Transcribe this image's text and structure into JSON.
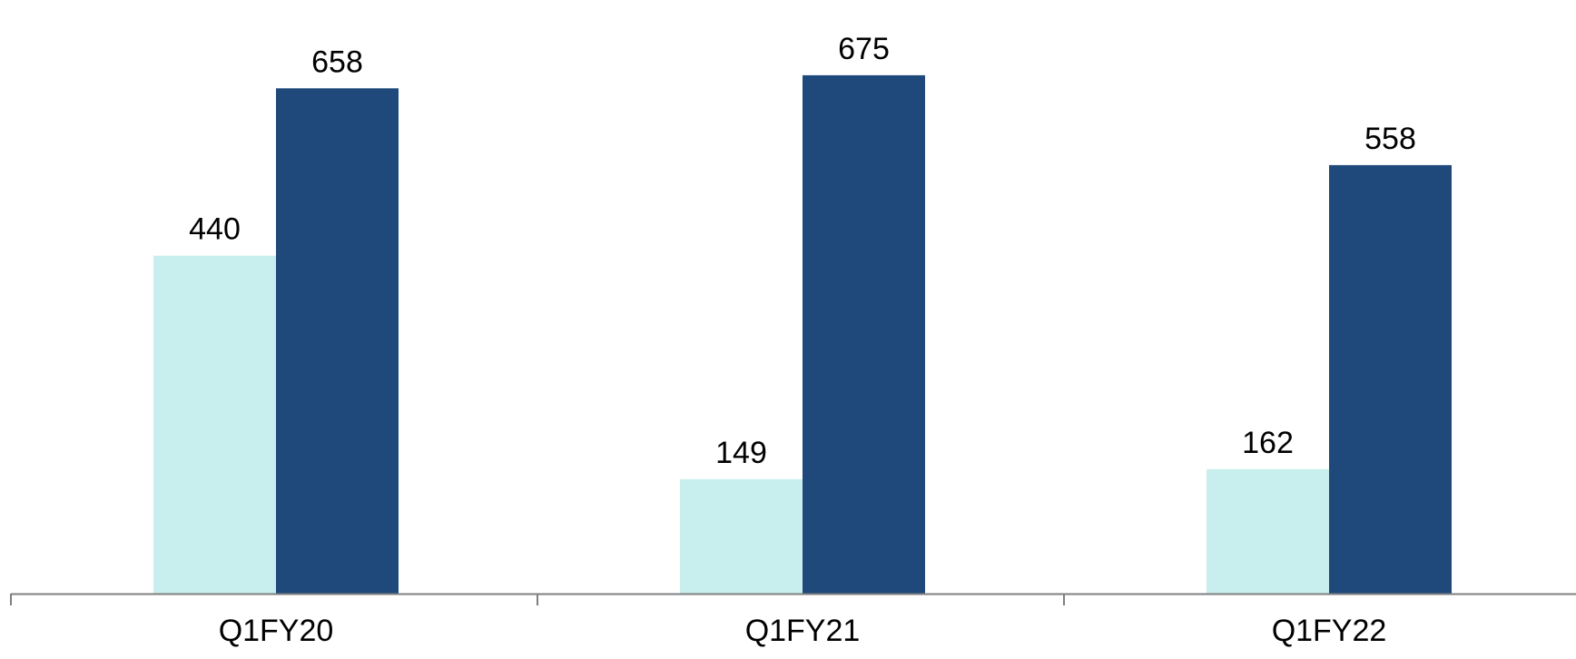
{
  "chart_data": {
    "type": "bar",
    "title": "",
    "xlabel": "",
    "ylabel": "",
    "categories": [
      "Q1FY20",
      "Q1FY21",
      "Q1FY22"
    ],
    "series": [
      {
        "values": [
          440,
          149,
          162
        ],
        "color": "#c8eeee"
      },
      {
        "values": [
          658,
          675,
          558
        ],
        "color": "#20497b"
      }
    ],
    "ylim": [
      0,
      760
    ],
    "grid": false,
    "legend": "none",
    "axis_color": "#7f7f7f"
  }
}
